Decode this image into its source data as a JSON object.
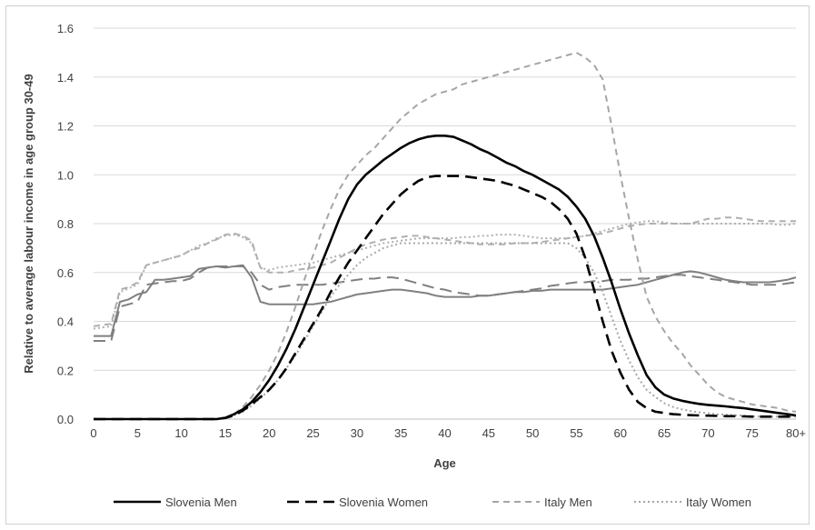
{
  "chart_data": {
    "type": "line",
    "title": "",
    "xlabel": "Age",
    "ylabel": "Relative to average labour income in age group 30-49",
    "xlim": [
      0,
      80
    ],
    "ylim": [
      0,
      1.6
    ],
    "x_ticks": [
      "0",
      "5",
      "10",
      "15",
      "20",
      "25",
      "30",
      "35",
      "40",
      "45",
      "50",
      "55",
      "60",
      "65",
      "70",
      "75",
      "80+"
    ],
    "y_ticks": [
      "0.0",
      "0.2",
      "0.4",
      "0.6",
      "0.8",
      "1.0",
      "1.2",
      "1.4",
      "1.6"
    ],
    "grid": "horizontal",
    "legend_position": "bottom",
    "series": [
      {
        "name": "Slovenia Men",
        "color": "#000000",
        "style": "solid",
        "x": [
          0,
          5,
          10,
          14,
          15,
          16,
          17,
          18,
          19,
          20,
          21,
          22,
          23,
          24,
          25,
          26,
          27,
          28,
          29,
          30,
          31,
          32,
          33,
          34,
          35,
          36,
          37,
          38,
          39,
          40,
          41,
          42,
          43,
          44,
          45,
          46,
          47,
          48,
          49,
          50,
          51,
          52,
          53,
          54,
          55,
          56,
          57,
          58,
          59,
          60,
          61,
          62,
          63,
          64,
          65,
          66,
          67,
          68,
          69,
          70,
          71,
          72,
          73,
          74,
          75,
          76,
          77,
          78,
          79,
          80
        ],
        "y": [
          0,
          0,
          0,
          0,
          0.005,
          0.02,
          0.04,
          0.07,
          0.11,
          0.16,
          0.22,
          0.29,
          0.37,
          0.46,
          0.55,
          0.64,
          0.73,
          0.82,
          0.9,
          0.96,
          1.0,
          1.03,
          1.06,
          1.085,
          1.11,
          1.13,
          1.145,
          1.155,
          1.16,
          1.16,
          1.155,
          1.14,
          1.125,
          1.105,
          1.09,
          1.07,
          1.05,
          1.035,
          1.015,
          1.0,
          0.98,
          0.96,
          0.94,
          0.91,
          0.87,
          0.82,
          0.75,
          0.66,
          0.56,
          0.45,
          0.35,
          0.26,
          0.18,
          0.13,
          0.1,
          0.085,
          0.075,
          0.068,
          0.062,
          0.058,
          0.055,
          0.052,
          0.048,
          0.045,
          0.04,
          0.035,
          0.03,
          0.025,
          0.02,
          0.015
        ]
      },
      {
        "name": "Slovenia Women",
        "color": "#000000",
        "style": "long-dash",
        "x": [
          0,
          5,
          10,
          14,
          15,
          16,
          17,
          18,
          19,
          20,
          21,
          22,
          23,
          24,
          25,
          26,
          27,
          28,
          29,
          30,
          31,
          32,
          33,
          34,
          35,
          36,
          37,
          38,
          39,
          40,
          41,
          42,
          43,
          44,
          45,
          46,
          47,
          48,
          49,
          50,
          51,
          52,
          53,
          54,
          55,
          56,
          57,
          58,
          59,
          60,
          61,
          62,
          63,
          64,
          65,
          66,
          67,
          68,
          69,
          70,
          71,
          72,
          73,
          74,
          75,
          76,
          77,
          78,
          79,
          80
        ],
        "y": [
          0,
          0,
          0,
          0,
          0.005,
          0.015,
          0.035,
          0.06,
          0.09,
          0.12,
          0.16,
          0.21,
          0.27,
          0.33,
          0.39,
          0.45,
          0.52,
          0.58,
          0.64,
          0.69,
          0.74,
          0.79,
          0.84,
          0.88,
          0.92,
          0.95,
          0.975,
          0.99,
          0.995,
          0.995,
          0.995,
          0.995,
          0.99,
          0.985,
          0.98,
          0.975,
          0.965,
          0.955,
          0.94,
          0.925,
          0.91,
          0.89,
          0.86,
          0.82,
          0.76,
          0.66,
          0.53,
          0.4,
          0.28,
          0.19,
          0.12,
          0.07,
          0.045,
          0.03,
          0.025,
          0.02,
          0.018,
          0.016,
          0.015,
          0.014,
          0.013,
          0.012,
          0.012,
          0.011,
          0.01,
          0.01,
          0.01,
          0.01,
          0.01,
          0.01
        ]
      },
      {
        "name": "Italy Men",
        "color": "#a6a6a6",
        "style": "short-dash",
        "x": [
          0,
          5,
          10,
          14,
          15,
          16,
          17,
          18,
          19,
          20,
          21,
          22,
          23,
          24,
          25,
          26,
          27,
          28,
          29,
          30,
          31,
          32,
          33,
          34,
          35,
          36,
          37,
          38,
          39,
          40,
          41,
          42,
          43,
          44,
          45,
          46,
          47,
          48,
          49,
          50,
          51,
          52,
          53,
          54,
          55,
          56,
          57,
          58,
          59,
          60,
          61,
          62,
          63,
          64,
          65,
          66,
          67,
          68,
          69,
          70,
          71,
          72,
          73,
          74,
          75,
          76,
          77,
          78,
          79,
          80
        ],
        "y": [
          0,
          0,
          0,
          0,
          0.005,
          0.02,
          0.05,
          0.09,
          0.14,
          0.2,
          0.27,
          0.36,
          0.46,
          0.57,
          0.67,
          0.77,
          0.86,
          0.94,
          1.0,
          1.04,
          1.08,
          1.11,
          1.15,
          1.19,
          1.23,
          1.26,
          1.29,
          1.31,
          1.33,
          1.34,
          1.35,
          1.37,
          1.38,
          1.39,
          1.4,
          1.41,
          1.42,
          1.43,
          1.44,
          1.45,
          1.46,
          1.47,
          1.48,
          1.49,
          1.5,
          1.48,
          1.45,
          1.39,
          1.2,
          1.0,
          0.82,
          0.65,
          0.5,
          0.42,
          0.36,
          0.31,
          0.27,
          0.22,
          0.18,
          0.14,
          0.11,
          0.09,
          0.08,
          0.07,
          0.06,
          0.055,
          0.05,
          0.045,
          0.035,
          0.03
        ]
      },
      {
        "name": "Italy Women",
        "color": "#a6a6a6",
        "style": "dotted",
        "x": [
          0,
          5,
          10,
          14,
          15,
          16,
          17,
          18,
          19,
          20,
          21,
          22,
          23,
          24,
          25,
          26,
          27,
          28,
          29,
          30,
          31,
          32,
          33,
          34,
          35,
          36,
          37,
          38,
          39,
          40,
          41,
          42,
          43,
          44,
          45,
          46,
          47,
          48,
          49,
          50,
          51,
          52,
          53,
          54,
          55,
          56,
          57,
          58,
          59,
          60,
          61,
          62,
          63,
          64,
          65,
          66,
          67,
          68,
          69,
          70,
          71,
          72,
          73,
          74,
          75,
          76,
          77,
          78,
          79,
          80
        ],
        "y": [
          0,
          0,
          0,
          0,
          0.005,
          0.015,
          0.03,
          0.055,
          0.085,
          0.12,
          0.16,
          0.21,
          0.26,
          0.32,
          0.38,
          0.44,
          0.5,
          0.55,
          0.59,
          0.63,
          0.66,
          0.68,
          0.7,
          0.71,
          0.72,
          0.72,
          0.72,
          0.72,
          0.72,
          0.72,
          0.72,
          0.72,
          0.72,
          0.72,
          0.72,
          0.72,
          0.72,
          0.72,
          0.72,
          0.72,
          0.72,
          0.72,
          0.72,
          0.72,
          0.7,
          0.66,
          0.6,
          0.52,
          0.42,
          0.32,
          0.24,
          0.17,
          0.12,
          0.09,
          0.065,
          0.05,
          0.04,
          0.033,
          0.028,
          0.024,
          0.02,
          0.018,
          0.016,
          0.014,
          0.012,
          0.01,
          0.01,
          0.01,
          0.01,
          0.01
        ]
      },
      {
        "name": "",
        "color": "#808080",
        "style": "solid",
        "x": [
          0,
          1,
          2,
          3,
          4,
          5,
          6,
          7,
          8,
          9,
          10,
          11,
          12,
          13,
          14,
          15,
          16,
          17,
          18,
          19,
          20,
          21,
          22,
          23,
          24,
          25,
          26,
          27,
          28,
          29,
          30,
          31,
          32,
          33,
          34,
          35,
          36,
          37,
          38,
          39,
          40,
          41,
          42,
          43,
          44,
          45,
          46,
          47,
          48,
          49,
          50,
          51,
          52,
          53,
          54,
          55,
          56,
          57,
          58,
          59,
          60,
          61,
          62,
          63,
          64,
          65,
          66,
          67,
          68,
          69,
          70,
          71,
          72,
          73,
          74,
          75,
          76,
          77,
          78,
          79,
          80
        ],
        "y": [
          0.34,
          0.34,
          0.34,
          0.48,
          0.49,
          0.51,
          0.52,
          0.57,
          0.57,
          0.575,
          0.58,
          0.585,
          0.615,
          0.62,
          0.625,
          0.62,
          0.625,
          0.63,
          0.58,
          0.48,
          0.47,
          0.47,
          0.47,
          0.47,
          0.47,
          0.47,
          0.475,
          0.48,
          0.49,
          0.5,
          0.51,
          0.515,
          0.52,
          0.525,
          0.53,
          0.53,
          0.525,
          0.52,
          0.515,
          0.505,
          0.5,
          0.5,
          0.5,
          0.5,
          0.505,
          0.505,
          0.51,
          0.515,
          0.52,
          0.52,
          0.525,
          0.525,
          0.53,
          0.53,
          0.53,
          0.53,
          0.53,
          0.53,
          0.53,
          0.535,
          0.54,
          0.545,
          0.55,
          0.56,
          0.57,
          0.58,
          0.59,
          0.6,
          0.605,
          0.6,
          0.59,
          0.58,
          0.57,
          0.565,
          0.56,
          0.56,
          0.56,
          0.56,
          0.565,
          0.57,
          0.58
        ]
      },
      {
        "name": "",
        "color": "#808080",
        "style": "long-dash",
        "x": [
          0,
          1,
          2,
          3,
          4,
          5,
          6,
          7,
          8,
          9,
          10,
          11,
          12,
          13,
          14,
          15,
          16,
          17,
          18,
          19,
          20,
          21,
          22,
          23,
          24,
          25,
          26,
          27,
          28,
          29,
          30,
          31,
          32,
          33,
          34,
          35,
          36,
          37,
          38,
          39,
          40,
          41,
          42,
          43,
          44,
          45,
          46,
          47,
          48,
          49,
          50,
          51,
          52,
          53,
          54,
          55,
          56,
          57,
          58,
          59,
          60,
          61,
          62,
          63,
          64,
          65,
          66,
          67,
          68,
          69,
          70,
          71,
          72,
          73,
          74,
          75,
          76,
          77,
          78,
          79,
          80
        ],
        "y": [
          0.32,
          0.32,
          0.32,
          0.46,
          0.47,
          0.48,
          0.55,
          0.555,
          0.56,
          0.565,
          0.565,
          0.575,
          0.6,
          0.62,
          0.625,
          0.625,
          0.625,
          0.625,
          0.6,
          0.55,
          0.53,
          0.54,
          0.545,
          0.55,
          0.55,
          0.55,
          0.55,
          0.555,
          0.56,
          0.565,
          0.57,
          0.575,
          0.575,
          0.58,
          0.58,
          0.575,
          0.565,
          0.555,
          0.545,
          0.535,
          0.53,
          0.52,
          0.515,
          0.51,
          0.505,
          0.505,
          0.51,
          0.515,
          0.52,
          0.525,
          0.53,
          0.535,
          0.545,
          0.55,
          0.555,
          0.56,
          0.56,
          0.565,
          0.565,
          0.57,
          0.57,
          0.57,
          0.575,
          0.575,
          0.58,
          0.585,
          0.59,
          0.59,
          0.585,
          0.58,
          0.575,
          0.57,
          0.565,
          0.56,
          0.555,
          0.55,
          0.55,
          0.55,
          0.55,
          0.555,
          0.56
        ]
      },
      {
        "name": "",
        "color": "#b0b0b0",
        "style": "short-dash",
        "x": [
          0,
          1,
          2,
          3,
          4,
          5,
          6,
          7,
          8,
          9,
          10,
          11,
          12,
          13,
          14,
          15,
          16,
          17,
          18,
          19,
          20,
          21,
          22,
          23,
          24,
          25,
          26,
          27,
          28,
          29,
          30,
          31,
          32,
          33,
          34,
          35,
          36,
          37,
          38,
          39,
          40,
          41,
          42,
          43,
          44,
          45,
          46,
          47,
          48,
          49,
          50,
          51,
          52,
          53,
          54,
          55,
          56,
          57,
          58,
          59,
          60,
          61,
          62,
          63,
          64,
          65,
          66,
          67,
          68,
          69,
          70,
          71,
          72,
          73,
          74,
          75,
          76,
          77,
          78,
          79,
          80
        ],
        "y": [
          0.38,
          0.385,
          0.39,
          0.53,
          0.54,
          0.56,
          0.63,
          0.64,
          0.65,
          0.66,
          0.67,
          0.69,
          0.7,
          0.72,
          0.735,
          0.755,
          0.76,
          0.75,
          0.73,
          0.62,
          0.6,
          0.6,
          0.6,
          0.61,
          0.615,
          0.62,
          0.63,
          0.64,
          0.66,
          0.68,
          0.7,
          0.715,
          0.725,
          0.735,
          0.74,
          0.745,
          0.75,
          0.75,
          0.745,
          0.74,
          0.735,
          0.73,
          0.725,
          0.72,
          0.715,
          0.715,
          0.715,
          0.715,
          0.72,
          0.72,
          0.72,
          0.725,
          0.73,
          0.735,
          0.74,
          0.745,
          0.75,
          0.755,
          0.76,
          0.77,
          0.78,
          0.79,
          0.795,
          0.8,
          0.8,
          0.8,
          0.8,
          0.8,
          0.8,
          0.81,
          0.82,
          0.82,
          0.825,
          0.825,
          0.82,
          0.815,
          0.81,
          0.81,
          0.81,
          0.81,
          0.81
        ]
      },
      {
        "name": "",
        "color": "#b0b0b0",
        "style": "dotted",
        "x": [
          0,
          1,
          2,
          3,
          4,
          5,
          6,
          7,
          8,
          9,
          10,
          11,
          12,
          13,
          14,
          15,
          16,
          17,
          18,
          19,
          20,
          21,
          22,
          23,
          24,
          25,
          26,
          27,
          28,
          29,
          30,
          31,
          32,
          33,
          34,
          35,
          36,
          37,
          38,
          39,
          40,
          41,
          42,
          43,
          44,
          45,
          46,
          47,
          48,
          49,
          50,
          51,
          52,
          53,
          54,
          55,
          56,
          57,
          58,
          59,
          60,
          61,
          62,
          63,
          64,
          65,
          66,
          67,
          68,
          69,
          70,
          71,
          72,
          73,
          74,
          75,
          76,
          77,
          78,
          79,
          80
        ],
        "y": [
          0.37,
          0.375,
          0.38,
          0.52,
          0.535,
          0.55,
          0.63,
          0.64,
          0.65,
          0.66,
          0.67,
          0.69,
          0.71,
          0.72,
          0.74,
          0.75,
          0.755,
          0.745,
          0.72,
          0.62,
          0.61,
          0.62,
          0.625,
          0.63,
          0.635,
          0.64,
          0.65,
          0.66,
          0.67,
          0.68,
          0.69,
          0.7,
          0.71,
          0.72,
          0.725,
          0.73,
          0.735,
          0.74,
          0.74,
          0.74,
          0.74,
          0.74,
          0.745,
          0.745,
          0.75,
          0.75,
          0.755,
          0.755,
          0.755,
          0.75,
          0.745,
          0.74,
          0.74,
          0.74,
          0.74,
          0.745,
          0.75,
          0.76,
          0.77,
          0.78,
          0.79,
          0.8,
          0.805,
          0.81,
          0.81,
          0.805,
          0.8,
          0.8,
          0.8,
          0.8,
          0.8,
          0.8,
          0.8,
          0.8,
          0.8,
          0.8,
          0.8,
          0.8,
          0.795,
          0.795,
          0.8
        ]
      }
    ]
  }
}
